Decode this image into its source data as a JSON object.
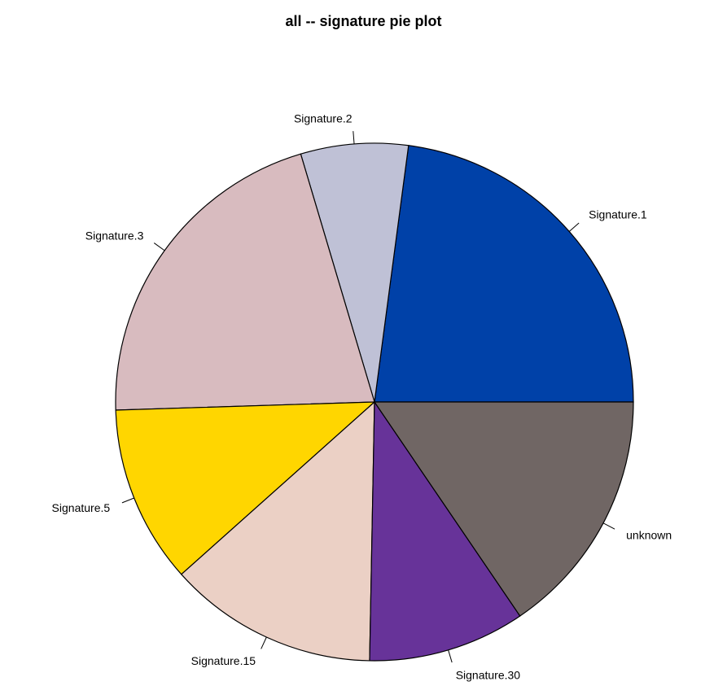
{
  "chart_data": {
    "type": "pie",
    "title": "all -- signature pie plot",
    "start_angle": 0,
    "direction": "counterclockwise",
    "slices": [
      {
        "label": "Signature.1",
        "value": 22.9,
        "color": "#0041A8"
      },
      {
        "label": "Signature.2",
        "value": 6.7,
        "color": "#BFC1D6"
      },
      {
        "label": "Signature.3",
        "value": 20.9,
        "color": "#D8BBBF"
      },
      {
        "label": "Signature.5",
        "value": 11.1,
        "color": "#FFD600"
      },
      {
        "label": "Signature.15",
        "value": 13.1,
        "color": "#EBD0C5"
      },
      {
        "label": "Signature.30",
        "value": 9.8,
        "color": "#673399"
      },
      {
        "label": "unknown",
        "value": 15.5,
        "color": "#706664"
      }
    ]
  }
}
